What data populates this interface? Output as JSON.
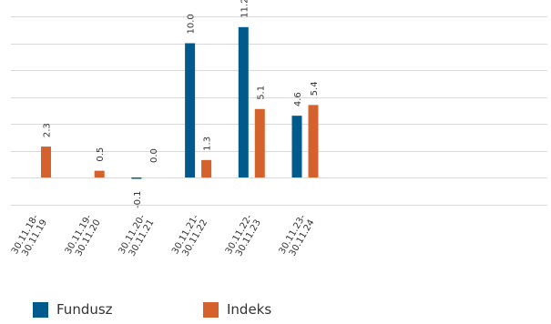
{
  "chart_data": {
    "type": "bar",
    "categories": [
      "30.11.18-\n30.11.19",
      "30.11.19-\n30.11.20",
      "30.11.20-\n30.11.21",
      "30.11.21-\n30.11.22",
      "30.11.22-\n30.11.23",
      "30.11.23-\n30.11.24"
    ],
    "series": [
      {
        "name": "Fundusz",
        "color": "#005b8c",
        "values": [
          null,
          null,
          -0.1,
          10.0,
          11.2,
          4.6
        ],
        "labels": [
          "",
          "",
          "-0.1",
          "10.0",
          "11.2",
          "4.6"
        ]
      },
      {
        "name": "Indeks",
        "color": "#d5622d",
        "values": [
          2.3,
          0.5,
          0.0,
          1.3,
          5.1,
          5.4
        ],
        "labels": [
          "2.3",
          "0.5",
          "0.0",
          "1.3",
          "5.1",
          "5.4"
        ]
      }
    ],
    "ylim": [
      -2.5,
      12.5
    ],
    "grid": true,
    "legend_position": "bottom-left"
  }
}
